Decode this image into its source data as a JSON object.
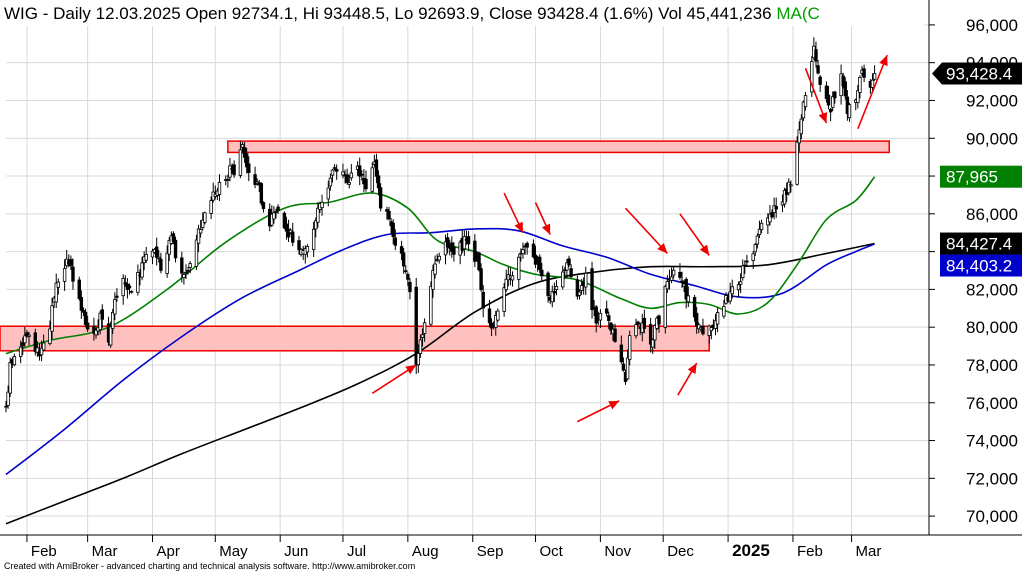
{
  "chart_data": {
    "type": "candlestick",
    "title": {
      "symbol": "WIG",
      "period": "Daily",
      "date": "12.03.2025",
      "open_label": "Open",
      "open": "92734.1",
      "high_label": "Hi",
      "high": "93448.5",
      "low_label": "Lo",
      "low": "92693.9",
      "close_label": "Close",
      "close": "93428.4",
      "change": "(1.6%)",
      "vol_label": "Vol",
      "volume": "45,441,236",
      "ma_label": "MA(C"
    },
    "ylim": [
      69000,
      97000
    ],
    "y_ticks": [
      "70,000",
      "72,000",
      "74,000",
      "76,000",
      "78,000",
      "80,000",
      "82,000",
      "84,000",
      "86,000",
      "88,000",
      "90,000",
      "92,000",
      "94,000",
      "96,000"
    ],
    "x_ticks": [
      "Feb",
      "Mar",
      "Apr",
      "May",
      "Jun",
      "Jul",
      "Aug",
      "Sep",
      "Oct",
      "Nov",
      "Dec",
      "2025",
      "Feb",
      "Mar"
    ],
    "x_tick_positions": [
      [
        2024,
        2,
        1
      ],
      [
        2024,
        3,
        1
      ],
      [
        2024,
        4,
        1
      ],
      [
        2024,
        5,
        1
      ],
      [
        2024,
        6,
        1
      ],
      [
        2024,
        7,
        1
      ],
      [
        2024,
        8,
        1
      ],
      [
        2024,
        9,
        1
      ],
      [
        2024,
        10,
        1
      ],
      [
        2024,
        11,
        1
      ],
      [
        2024,
        12,
        1
      ],
      [
        2025,
        1,
        1
      ],
      [
        2025,
        2,
        1
      ],
      [
        2025,
        3,
        1
      ]
    ],
    "x_range": [
      "2024-01-22",
      "2025-04-07"
    ],
    "colors": {
      "candles": "#000000",
      "ma_short": "#008000",
      "ma_mid": "#0000cc",
      "ma_long": "#000000",
      "zones_fill": "#ffc0c0",
      "zones_stroke": "#ee0000",
      "arrows": "#ee0000",
      "grid": "#d9d9d9"
    },
    "price_tags": [
      {
        "label": "93,428.4",
        "value": 93428.4,
        "bg": "#000000",
        "fg": "#ffffff",
        "pointer": true
      },
      {
        "label": "87,965",
        "value": 87965,
        "bg": "#008000",
        "fg": "#ffffff",
        "pointer": false
      },
      {
        "label": "84,427.4",
        "value": 84427.4,
        "bg": "#000000",
        "fg": "#ffffff",
        "pointer": false
      },
      {
        "label": "84,403.2",
        "value": 84403.2,
        "bg": "#0000cc",
        "fg": "#ffffff",
        "pointer": false
      }
    ],
    "zones": [
      {
        "name": "resistance",
        "start": "2024-05-07",
        "end": "2025-03-19",
        "low": 89250,
        "high": 89850
      },
      {
        "name": "support",
        "start": "2024-01-22",
        "end": "2024-12-23",
        "low": 78750,
        "high": 80050
      }
    ],
    "close_path": [
      [
        "2024-01-22",
        75500
      ],
      [
        "2024-01-24",
        77800
      ],
      [
        "2024-01-29",
        79200
      ],
      [
        "2024-02-02",
        79400
      ],
      [
        "2024-02-08",
        78600
      ],
      [
        "2024-02-12",
        80200
      ],
      [
        "2024-02-15",
        82100
      ],
      [
        "2024-02-20",
        83600
      ],
      [
        "2024-02-23",
        82600
      ],
      [
        "2024-02-28",
        80600
      ],
      [
        "2024-03-04",
        79400
      ],
      [
        "2024-03-07",
        80400
      ],
      [
        "2024-03-11",
        79100
      ],
      [
        "2024-03-14",
        81200
      ],
      [
        "2024-03-18",
        82500
      ],
      [
        "2024-03-22",
        81600
      ],
      [
        "2024-03-27",
        83300
      ],
      [
        "2024-04-02",
        84300
      ],
      [
        "2024-04-05",
        83300
      ],
      [
        "2024-04-10",
        84900
      ],
      [
        "2024-04-15",
        82600
      ],
      [
        "2024-04-18",
        83100
      ],
      [
        "2024-04-23",
        84900
      ],
      [
        "2024-04-29",
        86700
      ],
      [
        "2024-05-06",
        88000
      ],
      [
        "2024-05-10",
        88400
      ],
      [
        "2024-05-14",
        89500
      ],
      [
        "2024-05-17",
        88400
      ],
      [
        "2024-05-22",
        87200
      ],
      [
        "2024-05-27",
        85500
      ],
      [
        "2024-05-31",
        86500
      ],
      [
        "2024-06-04",
        85300
      ],
      [
        "2024-06-10",
        84000
      ],
      [
        "2024-06-14",
        84600
      ],
      [
        "2024-06-19",
        86000
      ],
      [
        "2024-06-24",
        87600
      ],
      [
        "2024-06-28",
        88600
      ],
      [
        "2024-07-03",
        87800
      ],
      [
        "2024-07-08",
        88700
      ],
      [
        "2024-07-11",
        87400
      ],
      [
        "2024-07-16",
        88600
      ],
      [
        "2024-07-19",
        86600
      ],
      [
        "2024-07-24",
        85300
      ],
      [
        "2024-07-29",
        83600
      ],
      [
        "2024-08-01",
        82700
      ],
      [
        "2024-08-05",
        78200
      ],
      [
        "2024-08-08",
        79600
      ],
      [
        "2024-08-13",
        83200
      ],
      [
        "2024-08-19",
        84300
      ],
      [
        "2024-08-23",
        83700
      ],
      [
        "2024-08-29",
        84600
      ],
      [
        "2024-09-03",
        83600
      ],
      [
        "2024-09-06",
        81000
      ],
      [
        "2024-09-10",
        79900
      ],
      [
        "2024-09-13",
        80600
      ],
      [
        "2024-09-18",
        82600
      ],
      [
        "2024-09-23",
        83700
      ],
      [
        "2024-09-27",
        84400
      ],
      [
        "2024-10-02",
        83200
      ],
      [
        "2024-10-07",
        81600
      ],
      [
        "2024-10-11",
        82300
      ],
      [
        "2024-10-16",
        83300
      ],
      [
        "2024-10-21",
        81800
      ],
      [
        "2024-10-25",
        82600
      ],
      [
        "2024-10-30",
        80300
      ],
      [
        "2024-11-04",
        80800
      ],
      [
        "2024-11-08",
        79400
      ],
      [
        "2024-11-13",
        77000
      ],
      [
        "2024-11-15",
        79400
      ],
      [
        "2024-11-20",
        80200
      ],
      [
        "2024-11-25",
        79300
      ],
      [
        "2024-11-29",
        80400
      ],
      [
        "2024-12-03",
        82400
      ],
      [
        "2024-12-06",
        83100
      ],
      [
        "2024-12-11",
        82200
      ],
      [
        "2024-12-16",
        80300
      ],
      [
        "2024-12-20",
        79500
      ],
      [
        "2024-12-27",
        80600
      ],
      [
        "2025-01-03",
        82000
      ],
      [
        "2025-01-08",
        82900
      ],
      [
        "2025-01-13",
        83600
      ],
      [
        "2025-01-17",
        85400
      ],
      [
        "2025-01-22",
        86100
      ],
      [
        "2025-01-27",
        86900
      ],
      [
        "2025-01-31",
        87800
      ],
      [
        "2025-02-04",
        90500
      ],
      [
        "2025-02-07",
        92600
      ],
      [
        "2025-02-11",
        94600
      ],
      [
        "2025-02-14",
        92600
      ],
      [
        "2025-02-19",
        91600
      ],
      [
        "2025-02-24",
        93100
      ],
      [
        "2025-02-27",
        91300
      ],
      [
        "2025-03-03",
        92300
      ],
      [
        "2025-03-06",
        93600
      ],
      [
        "2025-03-10",
        92400
      ],
      [
        "2025-03-12",
        93428
      ]
    ],
    "ma_short": [
      [
        "2024-01-22",
        78600
      ],
      [
        "2024-02-12",
        79300
      ],
      [
        "2024-03-11",
        80000
      ],
      [
        "2024-04-08",
        82000
      ],
      [
        "2024-05-06",
        84500
      ],
      [
        "2024-06-03",
        86300
      ],
      [
        "2024-06-24",
        86600
      ],
      [
        "2024-07-15",
        87100
      ],
      [
        "2024-08-01",
        86300
      ],
      [
        "2024-08-15",
        84600
      ],
      [
        "2024-09-02",
        84000
      ],
      [
        "2024-09-16",
        83300
      ],
      [
        "2024-10-01",
        82800
      ],
      [
        "2024-10-21",
        82500
      ],
      [
        "2024-11-11",
        81500
      ],
      [
        "2024-11-25",
        81000
      ],
      [
        "2024-12-09",
        81300
      ],
      [
        "2024-12-23",
        81200
      ],
      [
        "2025-01-06",
        80700
      ],
      [
        "2025-01-20",
        81300
      ],
      [
        "2025-02-03",
        83300
      ],
      [
        "2025-02-17",
        85700
      ],
      [
        "2025-03-03",
        86700
      ],
      [
        "2025-03-12",
        87965
      ]
    ],
    "ma_mid": [
      [
        "2024-01-22",
        72200
      ],
      [
        "2024-02-19",
        74600
      ],
      [
        "2024-03-18",
        77200
      ],
      [
        "2024-04-15",
        79500
      ],
      [
        "2024-05-13",
        81500
      ],
      [
        "2024-06-10",
        83000
      ],
      [
        "2024-07-01",
        84100
      ],
      [
        "2024-07-22",
        84900
      ],
      [
        "2024-08-12",
        85000
      ],
      [
        "2024-09-02",
        85200
      ],
      [
        "2024-09-23",
        85100
      ],
      [
        "2024-10-14",
        84300
      ],
      [
        "2024-11-04",
        83700
      ],
      [
        "2024-11-25",
        82800
      ],
      [
        "2024-12-16",
        82200
      ],
      [
        "2025-01-06",
        81600
      ],
      [
        "2025-01-27",
        81800
      ],
      [
        "2025-02-17",
        83300
      ],
      [
        "2025-03-03",
        84000
      ],
      [
        "2025-03-12",
        84403
      ]
    ],
    "ma_long": [
      [
        "2024-01-22",
        69600
      ],
      [
        "2024-02-19",
        70800
      ],
      [
        "2024-03-18",
        72000
      ],
      [
        "2024-04-15",
        73300
      ],
      [
        "2024-05-13",
        74500
      ],
      [
        "2024-06-10",
        75700
      ],
      [
        "2024-07-08",
        77000
      ],
      [
        "2024-08-05",
        78600
      ],
      [
        "2024-09-02",
        80800
      ],
      [
        "2024-09-30",
        82300
      ],
      [
        "2024-10-28",
        82900
      ],
      [
        "2024-11-25",
        83200
      ],
      [
        "2024-12-23",
        83200
      ],
      [
        "2025-01-20",
        83300
      ],
      [
        "2025-02-17",
        83900
      ],
      [
        "2025-03-12",
        84427
      ]
    ],
    "arrows": [
      {
        "from": [
          "2024-07-15",
          76500
        ],
        "to": [
          "2024-08-05",
          78000
        ],
        "dir": "up"
      },
      {
        "from": [
          "2024-10-21",
          75000
        ],
        "to": [
          "2024-11-10",
          76100
        ],
        "dir": "up"
      },
      {
        "from": [
          "2024-12-08",
          76400
        ],
        "to": [
          "2024-12-17",
          78100
        ],
        "dir": "up"
      },
      {
        "from": [
          "2025-03-04",
          90500
        ],
        "to": [
          "2025-03-18",
          94400
        ],
        "dir": "up"
      },
      {
        "from": [
          "2024-09-16",
          87100
        ],
        "to": [
          "2024-09-25",
          85000
        ],
        "dir": "down"
      },
      {
        "from": [
          "2024-10-01",
          86600
        ],
        "to": [
          "2024-10-08",
          84900
        ],
        "dir": "down"
      },
      {
        "from": [
          "2024-11-13",
          86300
        ],
        "to": [
          "2024-12-03",
          83900
        ],
        "dir": "down"
      },
      {
        "from": [
          "2024-12-09",
          86000
        ],
        "to": [
          "2024-12-23",
          83800
        ],
        "dir": "down"
      },
      {
        "from": [
          "2025-02-07",
          93700
        ],
        "to": [
          "2025-02-17",
          90800
        ],
        "dir": "down"
      }
    ]
  },
  "footer": "Created with AmiBroker - advanced charting and technical analysis software. http://www.amibroker.com"
}
